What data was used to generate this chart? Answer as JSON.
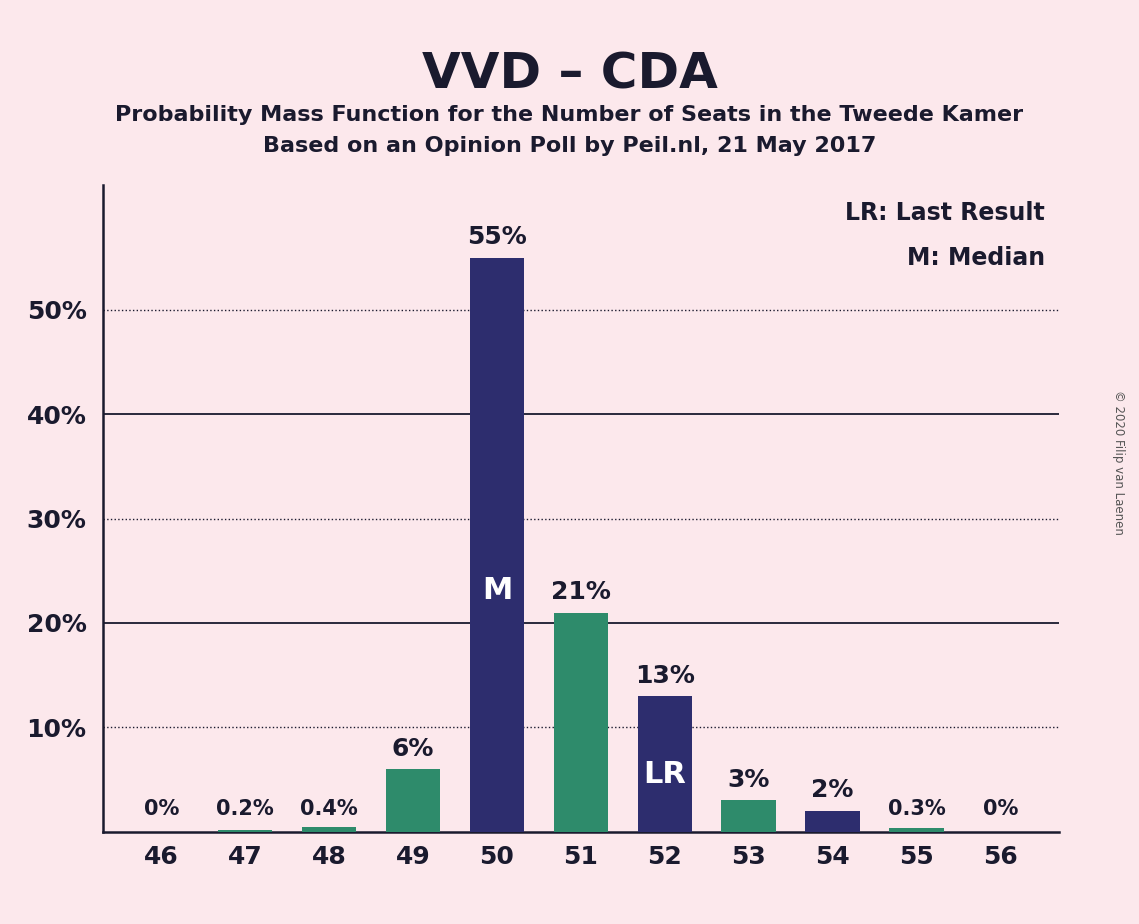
{
  "title": "VVD – CDA",
  "subtitle1": "Probability Mass Function for the Number of Seats in the Tweede Kamer",
  "subtitle2": "Based on an Opinion Poll by Peil.nl, 21 May 2017",
  "categories": [
    46,
    47,
    48,
    49,
    50,
    51,
    52,
    53,
    54,
    55,
    56
  ],
  "values": [
    0.0,
    0.2,
    0.4,
    6.0,
    55.0,
    21.0,
    13.0,
    3.0,
    2.0,
    0.3,
    0.0
  ],
  "bar_colors": [
    "#2e8b6b",
    "#2e8b6b",
    "#2e8b6b",
    "#2e8b6b",
    "#2d2d6e",
    "#2e8b6b",
    "#2d2d6e",
    "#2e8b6b",
    "#2d2d6e",
    "#2e8b6b",
    "#2e8b6b"
  ],
  "labels": [
    "0%",
    "0.2%",
    "0.4%",
    "6%",
    "55%",
    "21%",
    "13%",
    "3%",
    "2%",
    "0.3%",
    "0%"
  ],
  "bar_labels": [
    "",
    "",
    "",
    "",
    "M",
    "",
    "LR",
    "",
    "",
    "",
    ""
  ],
  "background_color": "#fce8ec",
  "title_fontsize": 36,
  "subtitle_fontsize": 16,
  "yticks": [
    0,
    10,
    20,
    30,
    40,
    50
  ],
  "ylim": [
    0,
    62
  ],
  "legend_text1": "LR: Last Result",
  "legend_text2": "M: Median",
  "copyright_text": "© 2020 Filip van Laenen",
  "solid_lines": [
    20,
    40
  ],
  "dotted_lines": [
    10,
    30,
    50
  ],
  "label_fontsize_large": 18,
  "label_fontsize_small": 15,
  "bar_label_fontsize": 22,
  "tick_fontsize": 18,
  "legend_fontsize": 17,
  "bar_navy": "#2d2d6e",
  "bar_teal": "#2e8b6b",
  "text_color": "#1a1a2e"
}
